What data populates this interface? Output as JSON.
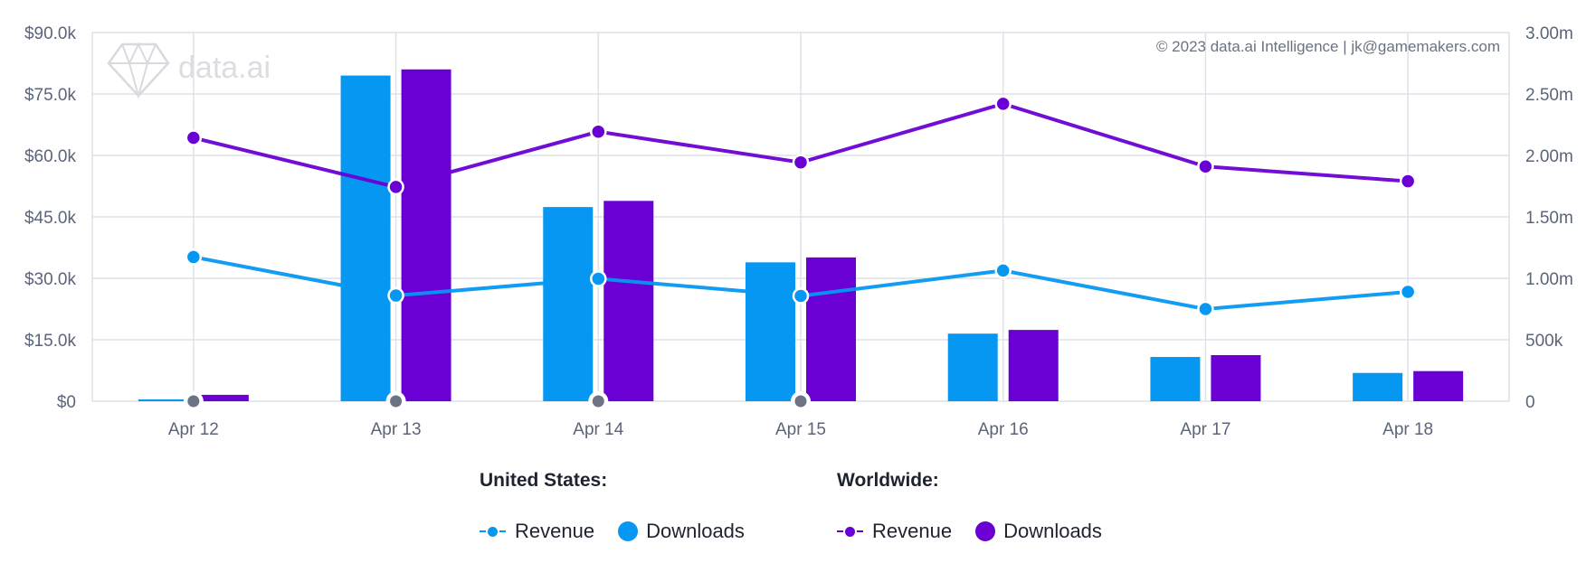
{
  "copyright": "© 2023 data.ai Intelligence | jk@gamemakers.com",
  "watermark": "data.ai",
  "colors": {
    "us": "#0597f2",
    "ww": "#6a00d4",
    "grid": "#dfe1e8",
    "marker": "#6b7385"
  },
  "legend": {
    "us_title": "United States:",
    "ww_title": "Worldwide:",
    "us_revenue": "Revenue",
    "us_downloads": "Downloads",
    "ww_revenue": "Revenue",
    "ww_downloads": "Downloads"
  },
  "chart_data": {
    "type": "bar",
    "categories": [
      "Apr 12",
      "Apr 13",
      "Apr 14",
      "Apr 15",
      "Apr 16",
      "Apr 17",
      "Apr 18"
    ],
    "y_left": {
      "ticks": [
        "$0",
        "$15.0k",
        "$30.0k",
        "$45.0k",
        "$60.0k",
        "$75.0k",
        "$90.0k"
      ],
      "range": [
        0,
        90000
      ]
    },
    "y_right": {
      "ticks": [
        "0",
        "500k",
        "1.00m",
        "1.50m",
        "2.00m",
        "2.50m",
        "3.00m"
      ],
      "range": [
        0,
        3000000
      ]
    },
    "series": [
      {
        "name": "United States Downloads",
        "type": "bar",
        "axis": "right",
        "values": [
          15000,
          2650000,
          1580000,
          1130000,
          550000,
          360000,
          230000
        ]
      },
      {
        "name": "Worldwide Downloads",
        "type": "bar",
        "axis": "right",
        "values": [
          52000,
          2700000,
          1630000,
          1170000,
          580000,
          375000,
          245000
        ]
      },
      {
        "name": "United States Revenue",
        "type": "line",
        "axis": "left",
        "values": [
          35200,
          25800,
          29900,
          25700,
          31900,
          22500,
          26700
        ]
      },
      {
        "name": "Worldwide Revenue",
        "type": "line",
        "axis": "left",
        "values": [
          64300,
          52300,
          65800,
          58300,
          72600,
          57300,
          53700
        ]
      }
    ],
    "event_markers": [
      "Apr 12",
      "Apr 13",
      "Apr 14",
      "Apr 15"
    ],
    "grid": true
  }
}
